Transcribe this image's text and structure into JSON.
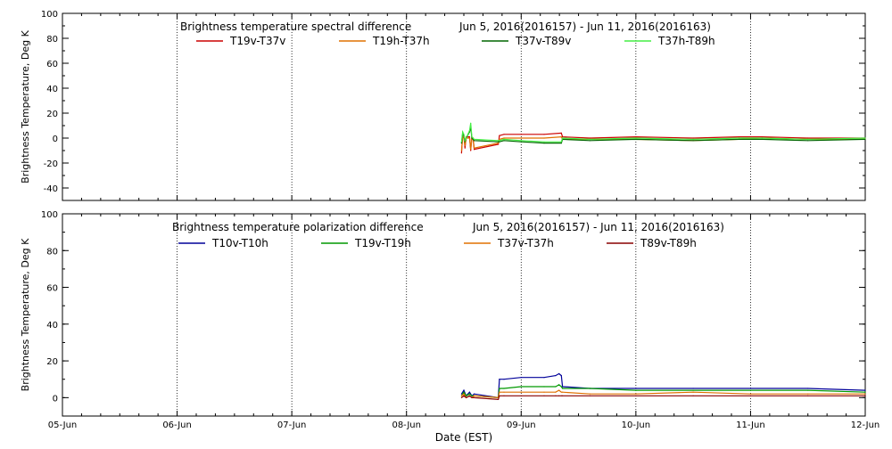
{
  "chart_data": [
    {
      "type": "line",
      "title": "Brightness temperature spectral difference",
      "date_range": "Jun  5, 2016(2016157) - Jun 11, 2016(2016163)",
      "ylabel": "Brightness Temperature, Deg K",
      "xlabel": "",
      "ylim": [
        -50,
        100
      ],
      "yticks": [
        "-40",
        "-20",
        "0",
        "20",
        "40",
        "60",
        "80",
        "100"
      ],
      "ytick_values": [
        -40,
        -20,
        0,
        20,
        40,
        60,
        80,
        100
      ],
      "xlim": [
        0,
        7
      ],
      "xticks": [
        "05-Jun",
        "06-Jun",
        "07-Jun",
        "08-Jun",
        "09-Jun",
        "10-Jun",
        "11-Jun",
        "12-Jun"
      ],
      "grid": "vertical dotted at day boundaries",
      "legend": "top, two rows of four",
      "series": [
        {
          "name": "T19v-T37v",
          "color": "#cc0000",
          "x": [
            3.48,
            3.49,
            3.5,
            3.51,
            3.52,
            3.55,
            3.56,
            3.57,
            3.58,
            3.59,
            3.8,
            3.81,
            3.85,
            4.0,
            4.2,
            4.35,
            4.36,
            4.6,
            5.0,
            5.5,
            5.9,
            6.1,
            6.5,
            7.0
          ],
          "y": [
            -12,
            3,
            2,
            -8,
            1,
            1,
            -10,
            1,
            0,
            -9,
            -5,
            2,
            3,
            3,
            3,
            4,
            1,
            0,
            1,
            0,
            1,
            1,
            0,
            0
          ]
        },
        {
          "name": "T19h-T37h",
          "color": "#e07000",
          "x": [
            3.48,
            3.49,
            3.5,
            3.51,
            3.52,
            3.55,
            3.56,
            3.57,
            3.58,
            3.59,
            3.8,
            3.81,
            3.85,
            4.0,
            4.2,
            4.35,
            4.36,
            4.6,
            5.0,
            5.5,
            5.9,
            6.1,
            6.5,
            7.0
          ],
          "y": [
            -10,
            1,
            0,
            -6,
            0,
            0,
            -9,
            0,
            0,
            -8,
            -4,
            -1,
            0,
            0,
            0,
            1,
            -1,
            -1,
            -1,
            -2,
            -1,
            0,
            -1,
            -1
          ]
        },
        {
          "name": "T37v-T89v",
          "color": "#006600",
          "x": [
            3.48,
            3.49,
            3.5,
            3.51,
            3.52,
            3.55,
            3.56,
            3.57,
            3.58,
            3.59,
            3.8,
            3.81,
            3.85,
            4.0,
            4.2,
            4.35,
            4.36,
            4.6,
            5.0,
            5.5,
            5.9,
            6.1,
            6.5,
            7.0
          ],
          "y": [
            -4,
            4,
            2,
            -3,
            0,
            5,
            9,
            0,
            -1,
            -2,
            -3,
            -3,
            -2,
            -3,
            -4,
            -4,
            -1,
            -2,
            -1,
            -2,
            -1,
            -1,
            -2,
            -1
          ]
        },
        {
          "name": "T37h-T89h",
          "color": "#44ee44",
          "x": [
            3.48,
            3.49,
            3.5,
            3.51,
            3.52,
            3.55,
            3.56,
            3.57,
            3.58,
            3.59,
            3.8,
            3.81,
            3.85,
            4.0,
            4.2,
            4.35,
            4.36,
            4.6,
            5.0,
            5.5,
            5.9,
            6.1,
            6.5,
            7.0
          ],
          "y": [
            -3,
            5,
            3,
            -2,
            0,
            6,
            12,
            1,
            0,
            -1,
            -2,
            -2,
            -1,
            -2,
            -3,
            -3,
            0,
            -1,
            0,
            -1,
            0,
            0,
            -1,
            0
          ]
        }
      ]
    },
    {
      "type": "line",
      "title": "Brightness temperature polarization difference",
      "date_range": "Jun  5, 2016(2016157) - Jun 11, 2016(2016163)",
      "ylabel": "Brightness Temperature, Deg K",
      "xlabel": "Date (EST)",
      "ylim": [
        -10,
        100
      ],
      "yticks": [
        "0",
        "20",
        "40",
        "60",
        "80",
        "100"
      ],
      "ytick_values": [
        0,
        20,
        40,
        60,
        80,
        100
      ],
      "xlim": [
        0,
        7
      ],
      "xticks": [
        "05-Jun",
        "06-Jun",
        "07-Jun",
        "08-Jun",
        "09-Jun",
        "10-Jun",
        "11-Jun",
        "12-Jun"
      ],
      "grid": "vertical dotted at day boundaries",
      "legend": "top, one row of four",
      "series": [
        {
          "name": "T10v-T10h",
          "color": "#000099",
          "x": [
            3.48,
            3.5,
            3.52,
            3.55,
            3.57,
            3.59,
            3.8,
            3.81,
            3.85,
            4.0,
            4.2,
            4.3,
            4.33,
            4.35,
            4.36,
            4.6,
            5.0,
            5.5,
            6.0,
            6.5,
            7.0
          ],
          "y": [
            2,
            4,
            1,
            3,
            1,
            2,
            0,
            10,
            10,
            11,
            11,
            12,
            13,
            12,
            6,
            5,
            5,
            5,
            5,
            5,
            4
          ]
        },
        {
          "name": "T19v-T19h",
          "color": "#009900",
          "x": [
            3.48,
            3.5,
            3.52,
            3.55,
            3.57,
            3.59,
            3.8,
            3.81,
            3.85,
            4.0,
            4.2,
            4.3,
            4.33,
            4.35,
            4.36,
            4.6,
            5.0,
            5.5,
            6.0,
            6.5,
            7.0
          ],
          "y": [
            1,
            3,
            1,
            2,
            1,
            1,
            0,
            5,
            5,
            6,
            6,
            6,
            7,
            6,
            5,
            5,
            4,
            4,
            4,
            4,
            3
          ]
        },
        {
          "name": "T37v-T37h",
          "color": "#e07000",
          "x": [
            3.48,
            3.5,
            3.52,
            3.55,
            3.57,
            3.59,
            3.8,
            3.81,
            3.85,
            4.0,
            4.2,
            4.3,
            4.33,
            4.35,
            4.36,
            4.6,
            5.0,
            5.5,
            6.0,
            6.5,
            7.0
          ],
          "y": [
            1,
            2,
            0,
            1,
            0,
            1,
            0,
            3,
            3,
            3,
            3,
            3,
            4,
            3,
            3,
            2,
            2,
            3,
            2,
            2,
            2
          ]
        },
        {
          "name": "T89v-T89h",
          "color": "#880000",
          "x": [
            3.48,
            3.5,
            3.52,
            3.55,
            3.57,
            3.59,
            3.8,
            3.81,
            3.85,
            4.0,
            4.2,
            4.3,
            4.33,
            4.35,
            4.36,
            4.6,
            5.0,
            5.5,
            6.0,
            6.5,
            7.0
          ],
          "y": [
            0,
            1,
            0,
            1,
            0,
            0,
            -1,
            1,
            1,
            1,
            1,
            1,
            1,
            1,
            1,
            1,
            1,
            1,
            1,
            1,
            1
          ]
        }
      ]
    }
  ]
}
